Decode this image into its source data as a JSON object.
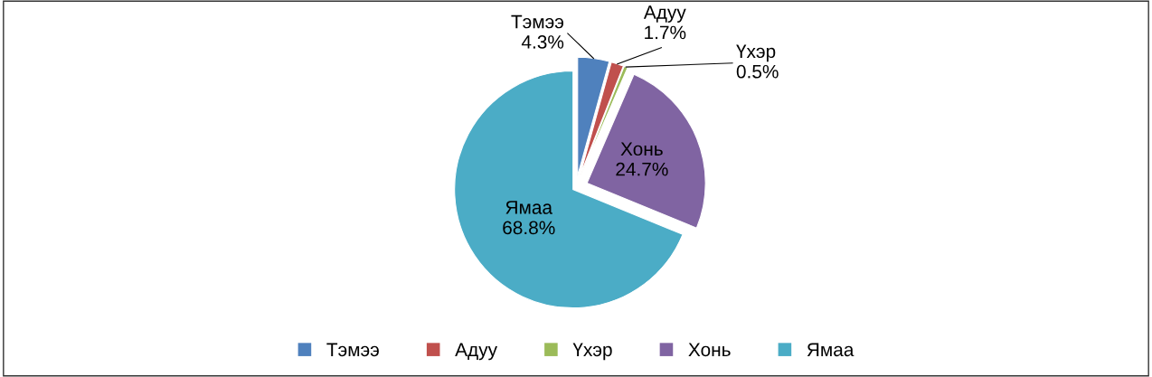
{
  "chart_data": {
    "type": "pie",
    "categories": [
      "Тэмээ",
      "Адуу",
      "Үхэр",
      "Хонь",
      "Ямаа"
    ],
    "values": [
      4.3,
      1.7,
      0.5,
      24.7,
      68.8
    ],
    "value_labels": [
      "4.3%",
      "1.7%",
      "0.5%",
      "24.7%",
      "68.8%"
    ],
    "colors": [
      "#4f81bd",
      "#c0504d",
      "#9bbb59",
      "#8064a2",
      "#4bacc6"
    ],
    "legend": "bottom"
  }
}
